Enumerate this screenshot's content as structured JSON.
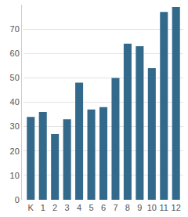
{
  "chart_data": {
    "type": "bar",
    "categories": [
      "K",
      "1",
      "2",
      "3",
      "4",
      "5",
      "6",
      "7",
      "8",
      "9",
      "10",
      "11",
      "12"
    ],
    "values": [
      34,
      36,
      27,
      33,
      48,
      37,
      38,
      50,
      64,
      63,
      54,
      77,
      79
    ],
    "color": "#336a8c",
    "ylim": [
      0,
      80
    ],
    "yticks": [
      0,
      10,
      20,
      30,
      40,
      50,
      60,
      70
    ],
    "grid": true
  }
}
